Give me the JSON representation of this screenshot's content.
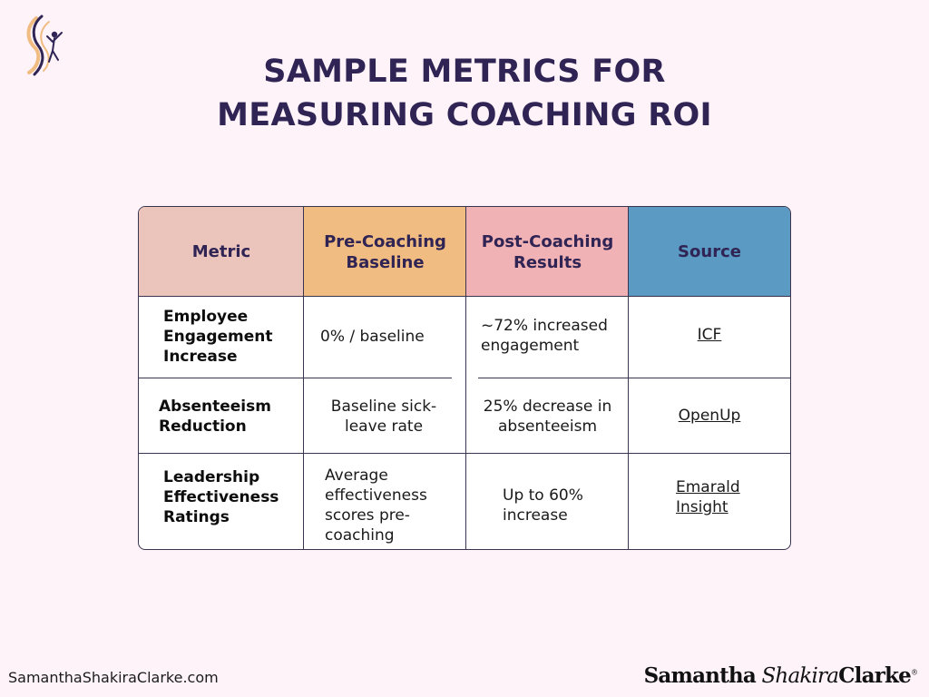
{
  "title": {
    "line1": "SAMPLE METRICS FOR",
    "line2": "MEASURING COACHING ROI"
  },
  "logo": {
    "icon": "dancer-figure-icon",
    "colors": [
      "#2f2454",
      "#f1bc82"
    ]
  },
  "table": {
    "headers": [
      "Metric",
      "Pre-Coaching Baseline",
      "Post-Coaching Results",
      "Source"
    ],
    "header_colors": [
      "#ebc5bb",
      "#f1bc82",
      "#f0b2b4",
      "#5b9ac2"
    ],
    "rows": [
      {
        "metric": "Employee Engagement Increase",
        "pre": "0% / baseline",
        "post": "~72% increased engagement",
        "source": "ICF"
      },
      {
        "metric": "Absenteeism Reduction",
        "pre": "Baseline sick-leave rate",
        "post": "25% decrease in absenteeism",
        "source": "OpenUp"
      },
      {
        "metric": "Leadership Effectiveness Ratings",
        "pre": "Average effectiveness scores pre-coaching",
        "post": "Up to 60% increase",
        "source": "Emarald Insight"
      }
    ]
  },
  "footer": {
    "website": "SamanthaShakiraClarke.com",
    "brand_first": "Samantha",
    "brand_middle": "Shakira",
    "brand_last": "Clarke",
    "registered": "®"
  }
}
